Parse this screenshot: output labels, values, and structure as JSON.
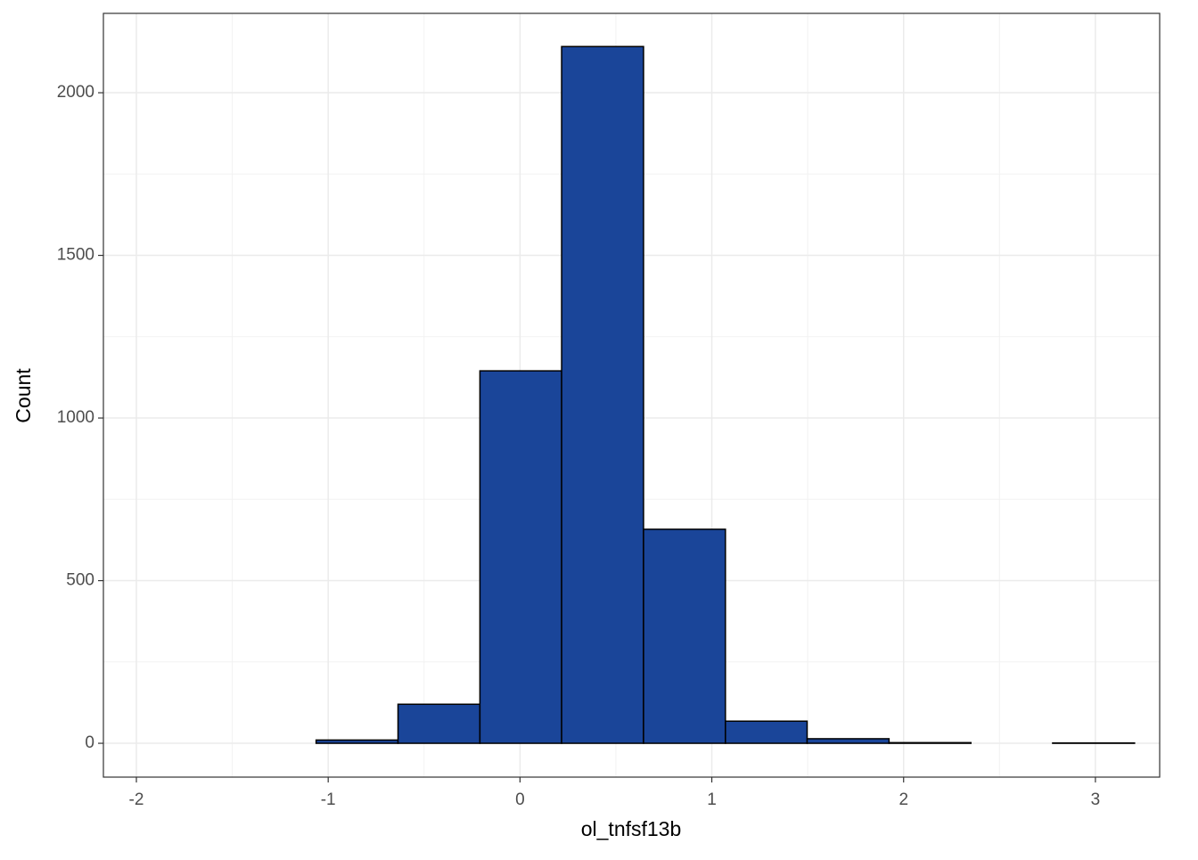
{
  "chart_data": {
    "type": "histogram",
    "x_label": "ol_tnfsf13b",
    "y_label": "Count",
    "bins": [
      -1.916,
      -1.489,
      -1.063,
      -0.636,
      -0.209,
      0.217,
      0.644,
      1.071,
      1.497,
      1.924,
      2.351,
      2.777,
      3.204
    ],
    "values": [
      0,
      0,
      10,
      120,
      1145,
      2142,
      658,
      68,
      14,
      2,
      0,
      1
    ],
    "color": "#1a4599",
    "xlim": [
      -2.172,
      3.335
    ],
    "xticks": [
      -2,
      -1,
      0,
      1,
      2,
      3
    ],
    "ylim": [
      -104,
      2244
    ],
    "yticks": [
      0,
      500,
      1000,
      1500,
      2000
    ],
    "grid": true,
    "minor_grid": true
  }
}
